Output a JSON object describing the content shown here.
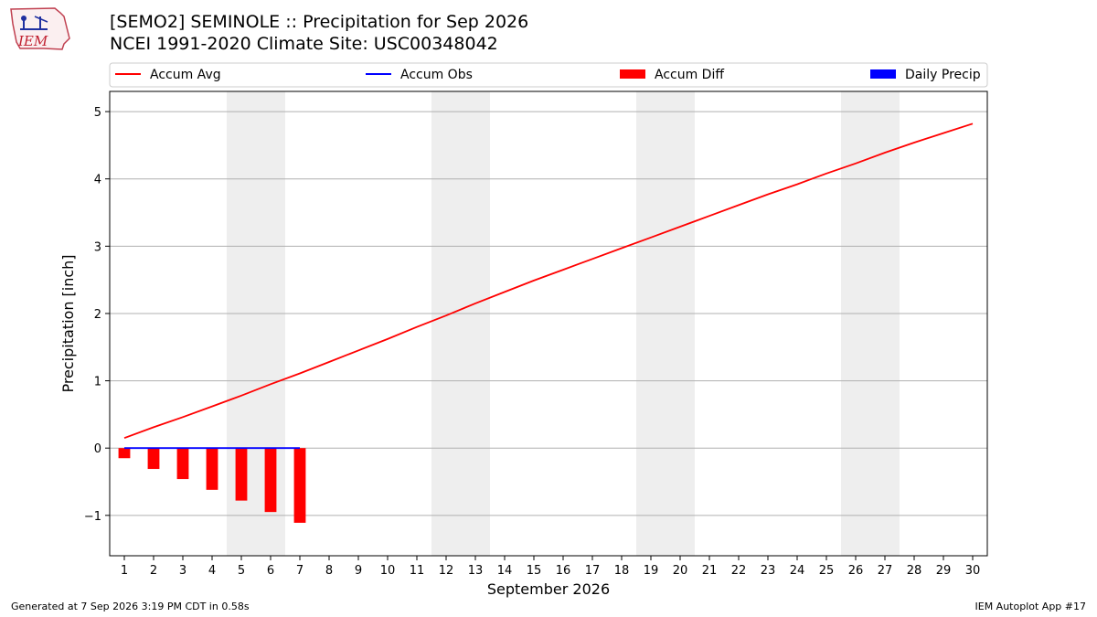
{
  "header": {
    "title_line1": "[SEMO2] SEMINOLE :: Precipitation for Sep 2026",
    "title_line2": "NCEI 1991-2020 Climate Site: USC00348042",
    "logo_text": "IEM"
  },
  "footer": {
    "generated": "Generated at 7 Sep 2026 3:19 PM CDT in 0.58s",
    "app": "IEM Autoplot App #17"
  },
  "chart_data": {
    "type": "bar",
    "xlabel": "September 2026",
    "ylabel": "Precipitation [inch]",
    "xlim": [
      0.5,
      30.5
    ],
    "ylim": [
      -1.6,
      5.3
    ],
    "grid": "horizontal",
    "legend_placement": "top",
    "x_ticks": [
      1,
      2,
      3,
      4,
      5,
      6,
      7,
      8,
      9,
      10,
      11,
      12,
      13,
      14,
      15,
      16,
      17,
      18,
      19,
      20,
      21,
      22,
      23,
      24,
      25,
      26,
      27,
      28,
      29,
      30
    ],
    "y_ticks": [
      -1,
      0,
      1,
      2,
      3,
      4,
      5
    ],
    "y_tick_labels": [
      "−1",
      "0",
      "1",
      "2",
      "3",
      "4",
      "5"
    ],
    "weekend_shading": [
      [
        5,
        6
      ],
      [
        12,
        13
      ],
      [
        19,
        20
      ],
      [
        26,
        27
      ]
    ],
    "legend": [
      {
        "label": "Accum Avg",
        "kind": "line",
        "color": "#ff0000"
      },
      {
        "label": "Accum Obs",
        "kind": "line",
        "color": "#0000ff"
      },
      {
        "label": "Accum Diff",
        "kind": "bar",
        "color": "#ff0000"
      },
      {
        "label": "Daily Precip",
        "kind": "bar",
        "color": "#0000ff"
      }
    ],
    "series": [
      {
        "name": "Accum Avg",
        "x": [
          1,
          2,
          3,
          4,
          5,
          6,
          7,
          8,
          9,
          10,
          11,
          12,
          13,
          14,
          15,
          16,
          17,
          18,
          19,
          20,
          21,
          22,
          23,
          24,
          25,
          26,
          27,
          28,
          29,
          30
        ],
        "values": [
          0.15,
          0.31,
          0.46,
          0.62,
          0.78,
          0.95,
          1.11,
          1.28,
          1.45,
          1.62,
          1.8,
          1.97,
          2.15,
          2.32,
          2.49,
          2.65,
          2.81,
          2.97,
          3.13,
          3.29,
          3.45,
          3.61,
          3.77,
          3.92,
          4.08,
          4.23,
          4.39,
          4.54,
          4.68,
          4.82
        ],
        "color": "#ff0000"
      },
      {
        "name": "Accum Obs",
        "x": [
          1,
          2,
          3,
          4,
          5,
          6,
          7
        ],
        "values": [
          0,
          0,
          0,
          0,
          0,
          0,
          0
        ],
        "color": "#0000ff"
      },
      {
        "name": "Accum Diff",
        "x": [
          1,
          2,
          3,
          4,
          5,
          6,
          7
        ],
        "values": [
          -0.15,
          -0.31,
          -0.46,
          -0.62,
          -0.78,
          -0.95,
          -1.11
        ],
        "color": "#ff0000"
      },
      {
        "name": "Daily Precip",
        "x": [
          1,
          2,
          3,
          4,
          5,
          6,
          7
        ],
        "values": [
          0,
          0,
          0,
          0,
          0,
          0,
          0
        ],
        "color": "#0000ff"
      }
    ]
  }
}
